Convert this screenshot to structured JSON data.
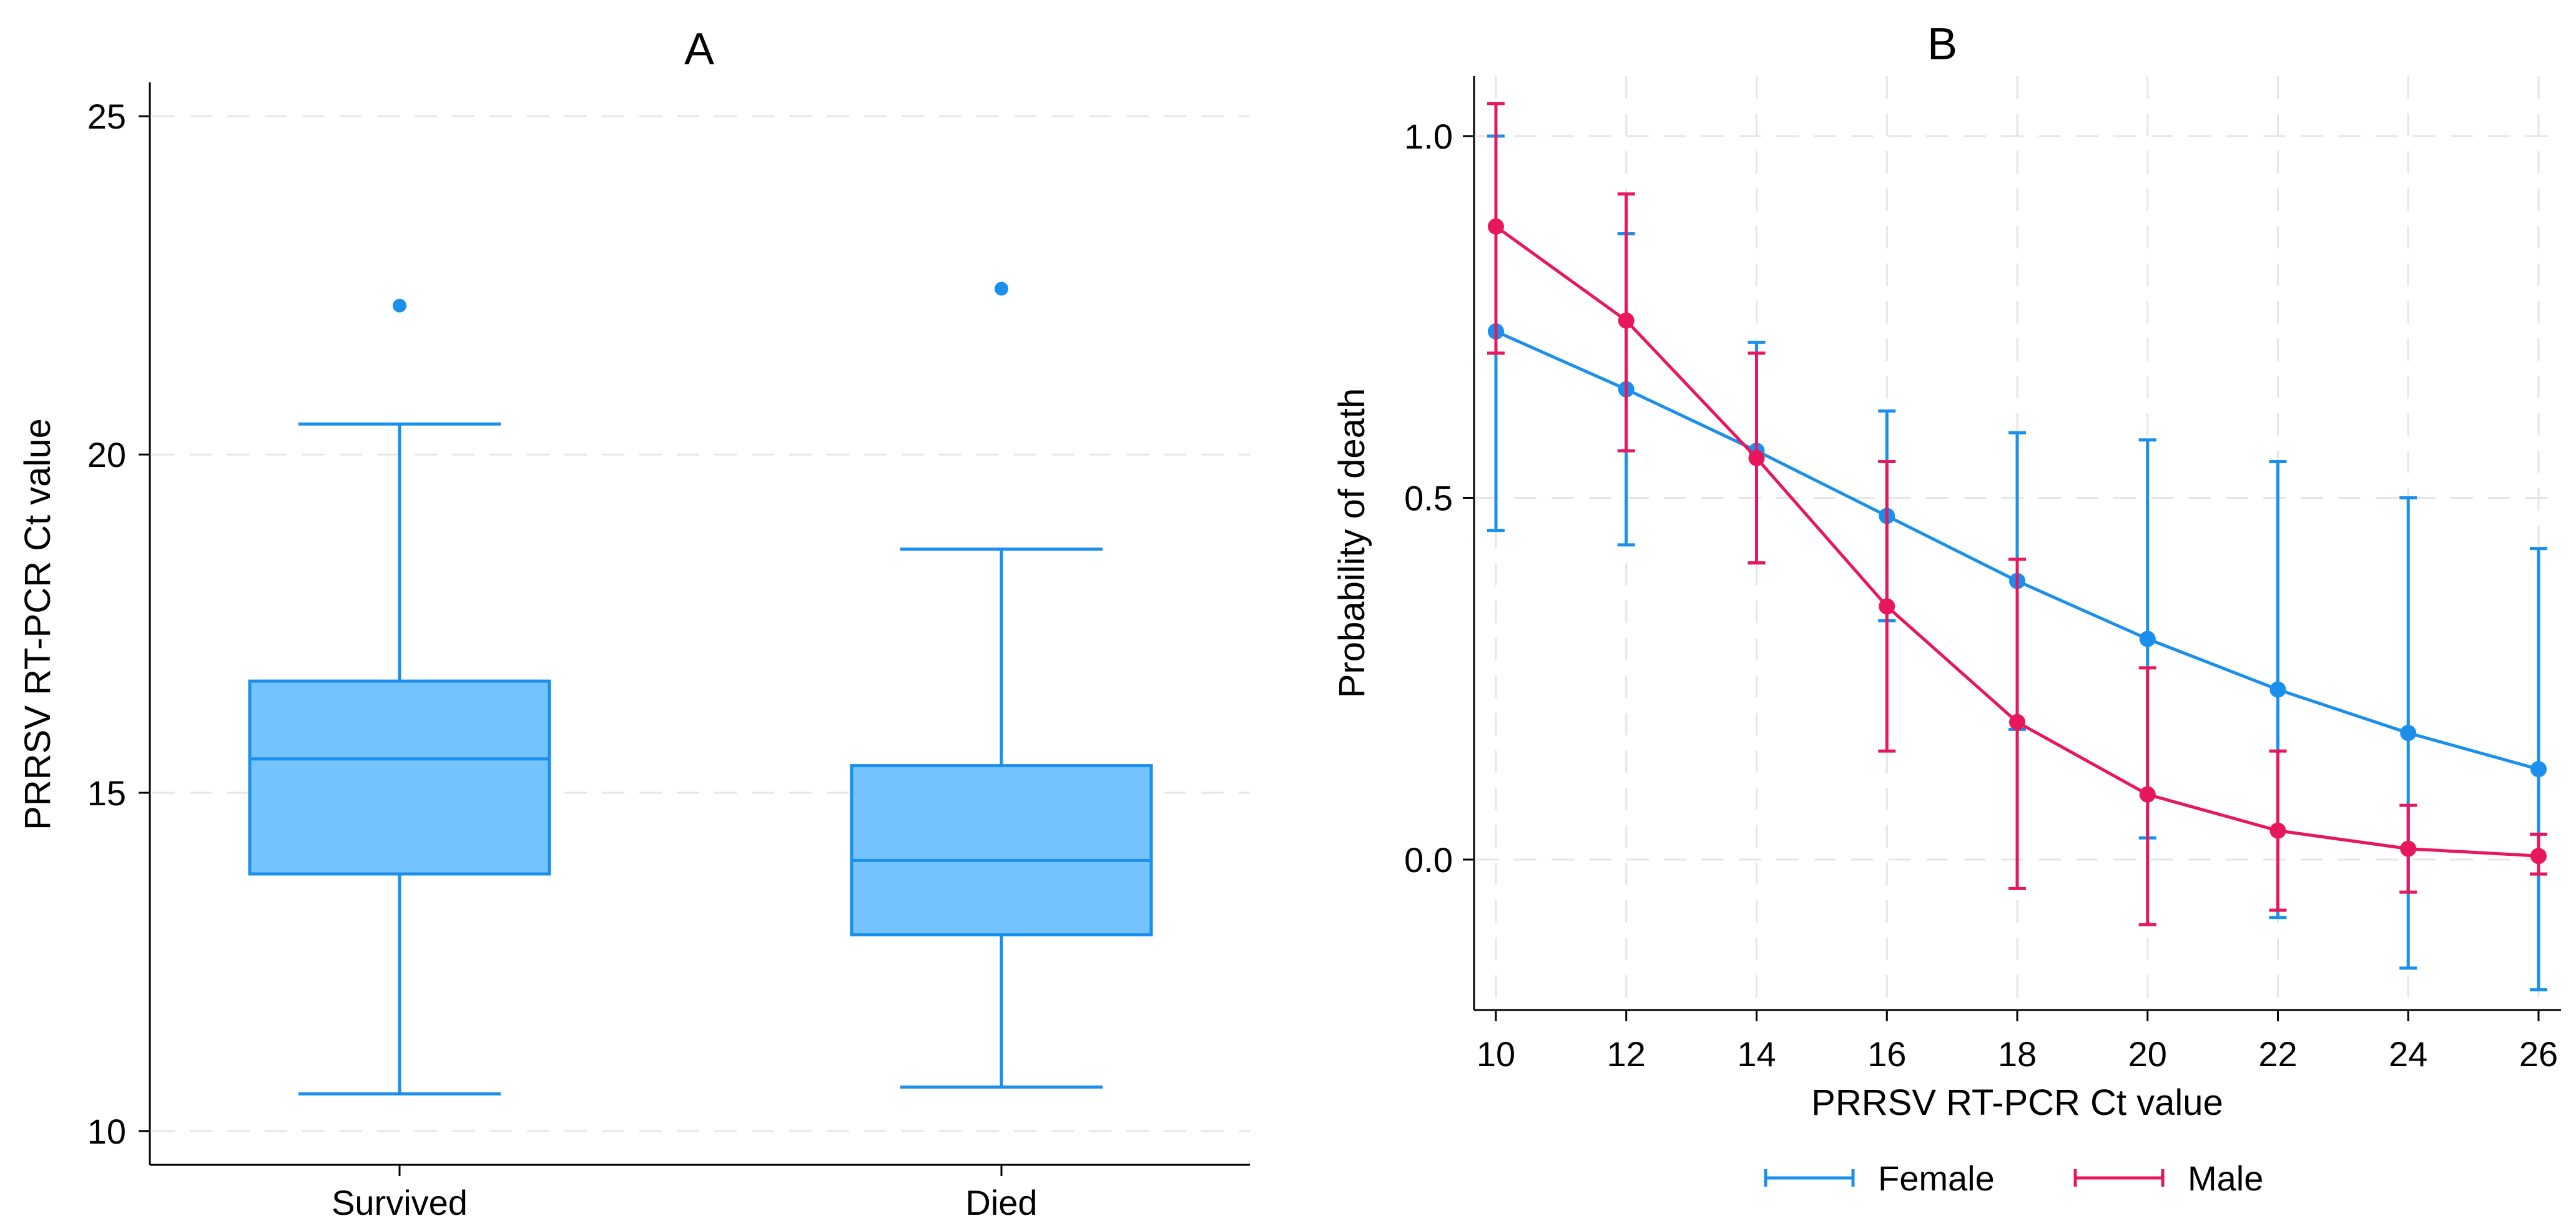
{
  "chart_data": [
    {
      "type": "box",
      "title": "A",
      "xlabel": "",
      "ylabel": "PRRSV RT-PCR Ct value",
      "ylim": [
        9.5,
        25.5
      ],
      "yticks": [
        10,
        15,
        20,
        25
      ],
      "ytick_labels": [
        "10",
        "15",
        "20",
        "25"
      ],
      "grid": true,
      "categories": [
        "Survived",
        "Died"
      ],
      "boxes": [
        {
          "category": "Survived",
          "whisker_low": 10.55,
          "q1": 13.8,
          "median": 15.5,
          "q3": 16.65,
          "whisker_high": 20.45,
          "outliers": [
            22.2
          ]
        },
        {
          "category": "Died",
          "whisker_low": 10.65,
          "q1": 12.9,
          "median": 14.0,
          "q3": 15.4,
          "whisker_high": 18.6,
          "outliers": [
            22.45
          ]
        }
      ],
      "colors": {
        "box_fill": "#74C3FC",
        "box_line": "#1A8FEB"
      }
    },
    {
      "type": "line",
      "title": "B",
      "xlabel": "PRRSV RT-PCR Ct value",
      "ylabel": "Probability of death",
      "xlim": [
        9.6,
        26.4
      ],
      "ylim": [
        -0.21,
        1.08
      ],
      "xticks": [
        10,
        12,
        14,
        16,
        18,
        20,
        22,
        24,
        26
      ],
      "xtick_labels": [
        "10",
        "12",
        "14",
        "16",
        "18",
        "20",
        "22",
        "24",
        "26"
      ],
      "yticks": [
        0,
        0.5,
        1
      ],
      "ytick_labels": [
        "0.0",
        "0.5",
        "1.0"
      ],
      "grid": true,
      "legend_position": "bottom",
      "x": [
        10,
        12,
        14,
        16,
        18,
        20,
        22,
        24,
        26
      ],
      "series": [
        {
          "name": "Female",
          "color": "#1A8FEB",
          "values": [
            0.73,
            0.65,
            0.565,
            0.475,
            0.385,
            0.305,
            0.235,
            0.175,
            0.125
          ],
          "ci_low": [
            0.455,
            0.435,
            0.41,
            0.33,
            0.18,
            0.03,
            -0.08,
            -0.15,
            -0.18
          ],
          "ci_high": [
            1.0,
            0.865,
            0.715,
            0.62,
            0.59,
            0.58,
            0.55,
            0.5,
            0.43
          ]
        },
        {
          "name": "Male",
          "color": "#E8175D",
          "values": [
            0.875,
            0.745,
            0.555,
            0.35,
            0.19,
            0.09,
            0.04,
            0.015,
            0.005
          ],
          "ci_low": [
            0.7,
            0.565,
            0.41,
            0.15,
            -0.04,
            -0.09,
            -0.07,
            -0.045,
            -0.02
          ],
          "ci_high": [
            1.045,
            0.92,
            0.7,
            0.55,
            0.415,
            0.265,
            0.15,
            0.075,
            0.035
          ]
        }
      ]
    }
  ]
}
